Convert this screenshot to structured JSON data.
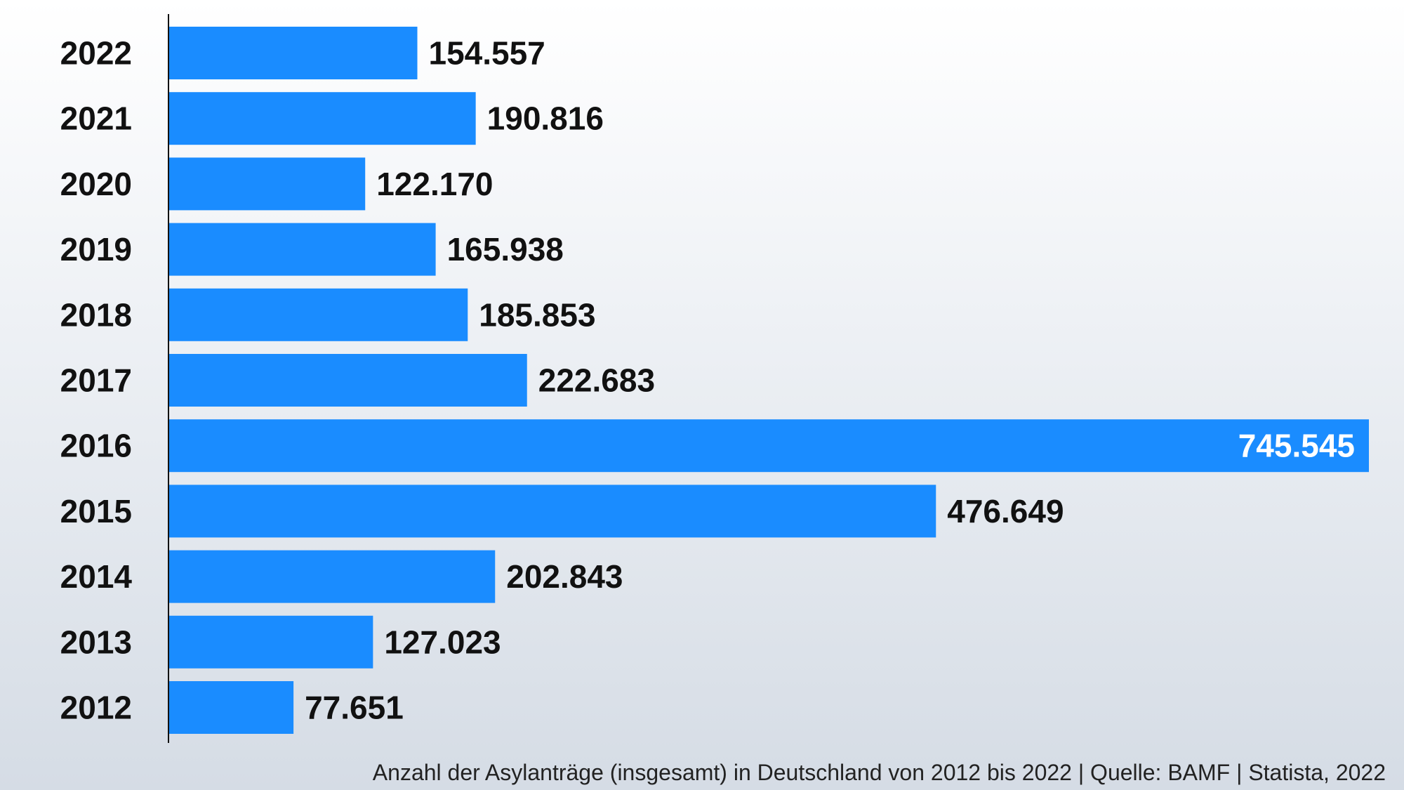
{
  "chart_data": {
    "type": "bar",
    "orientation": "horizontal",
    "categories": [
      "2022",
      "2021",
      "2020",
      "2019",
      "2018",
      "2017",
      "2016",
      "2015",
      "2014",
      "2013",
      "2012"
    ],
    "values": [
      154557,
      190816,
      122170,
      165938,
      185853,
      222683,
      745545,
      476649,
      202843,
      127023,
      77651
    ],
    "value_labels": [
      "154.557",
      "190.816",
      "122.170",
      "165.938",
      "185.853",
      "222.683",
      "745.545",
      "476.649",
      "202.843",
      "127.023",
      "77.651"
    ],
    "xlim": [
      0,
      745545
    ],
    "grid": false,
    "bar_color": "#1a8cff",
    "caption": "Anzahl der Asylanträge (insgesamt) in Deutschland von 2012 bis 2022 | Quelle: BAMF | Statista, 2022"
  }
}
